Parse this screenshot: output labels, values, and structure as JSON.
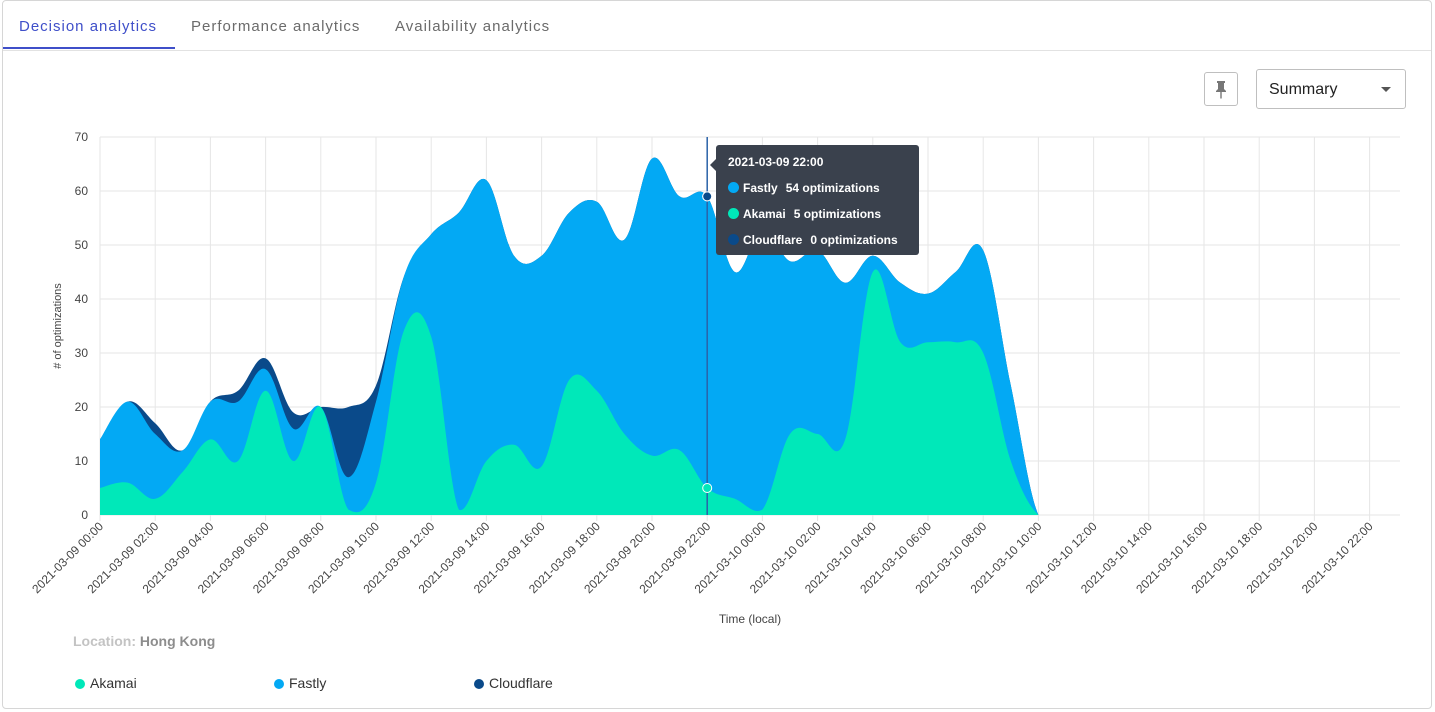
{
  "tabs": [
    {
      "label": "Decision analytics",
      "active": true
    },
    {
      "label": "Performance analytics",
      "active": false
    },
    {
      "label": "Availability analytics",
      "active": false
    }
  ],
  "toolbar": {
    "pin_icon": "pin-icon",
    "view_select": {
      "value": "Summary",
      "icon": "caret-down-icon"
    }
  },
  "location": {
    "label": "Location:",
    "value": "Hong Kong"
  },
  "tooltip": {
    "title": "2021-03-09 22:00",
    "rows": [
      {
        "provider": "Fastly",
        "value": "54 optimizations",
        "color": "#03a9f4"
      },
      {
        "provider": "Akamai",
        "value": "5 optimizations",
        "color": "#00e8b9"
      },
      {
        "provider": "Cloudflare",
        "value": "0 optimizations",
        "color": "#0a4a8a"
      }
    ]
  },
  "legend": [
    {
      "name": "Akamai",
      "color": "#00e8b9"
    },
    {
      "name": "Fastly",
      "color": "#03a9f4"
    },
    {
      "name": "Cloudflare",
      "color": "#0a4a8a"
    }
  ],
  "chart_data": {
    "type": "area",
    "stacked": true,
    "xlabel": "Time (local)",
    "ylabel": "# of optimizations",
    "ylim": [
      0,
      70
    ],
    "yticks": [
      0,
      10,
      20,
      30,
      40,
      50,
      60,
      70
    ],
    "grid": true,
    "x": [
      "2021-03-09 00:00",
      "2021-03-09 01:00",
      "2021-03-09 02:00",
      "2021-03-09 03:00",
      "2021-03-09 04:00",
      "2021-03-09 05:00",
      "2021-03-09 06:00",
      "2021-03-09 07:00",
      "2021-03-09 08:00",
      "2021-03-09 09:00",
      "2021-03-09 10:00",
      "2021-03-09 11:00",
      "2021-03-09 12:00",
      "2021-03-09 13:00",
      "2021-03-09 14:00",
      "2021-03-09 15:00",
      "2021-03-09 16:00",
      "2021-03-09 17:00",
      "2021-03-09 18:00",
      "2021-03-09 19:00",
      "2021-03-09 20:00",
      "2021-03-09 21:00",
      "2021-03-09 22:00",
      "2021-03-09 23:00",
      "2021-03-10 00:00",
      "2021-03-10 01:00",
      "2021-03-10 02:00",
      "2021-03-10 03:00",
      "2021-03-10 04:00",
      "2021-03-10 05:00",
      "2021-03-10 06:00",
      "2021-03-10 07:00",
      "2021-03-10 08:00",
      "2021-03-10 09:00",
      "2021-03-10 10:00",
      "2021-03-10 11:00",
      "2021-03-10 12:00",
      "2021-03-10 13:00",
      "2021-03-10 14:00",
      "2021-03-10 15:00",
      "2021-03-10 16:00",
      "2021-03-10 17:00",
      "2021-03-10 18:00",
      "2021-03-10 19:00",
      "2021-03-10 20:00",
      "2021-03-10 21:00",
      "2021-03-10 22:00",
      "2021-03-10 23:00"
    ],
    "xticks": [
      "2021-03-09 00:00",
      "2021-03-09 02:00",
      "2021-03-09 04:00",
      "2021-03-09 06:00",
      "2021-03-09 08:00",
      "2021-03-09 10:00",
      "2021-03-09 12:00",
      "2021-03-09 14:00",
      "2021-03-09 16:00",
      "2021-03-09 18:00",
      "2021-03-09 20:00",
      "2021-03-09 22:00",
      "2021-03-10 00:00",
      "2021-03-10 02:00",
      "2021-03-10 04:00",
      "2021-03-10 06:00",
      "2021-03-10 08:00",
      "2021-03-10 10:00",
      "2021-03-10 12:00",
      "2021-03-10 14:00",
      "2021-03-10 16:00",
      "2021-03-10 18:00",
      "2021-03-10 20:00",
      "2021-03-10 22:00"
    ],
    "series": [
      {
        "name": "Akamai",
        "color": "#00e8b9",
        "values": [
          5,
          6,
          3,
          8,
          14,
          10,
          23,
          10,
          20,
          1,
          6,
          34,
          33,
          1,
          10,
          13,
          9,
          25,
          23,
          15,
          11,
          12,
          5,
          3,
          1,
          15,
          15,
          14,
          45,
          32,
          32,
          32,
          30,
          10,
          0,
          0,
          0,
          0,
          0,
          0,
          0,
          0,
          0,
          0,
          0,
          0,
          0,
          0
        ]
      },
      {
        "name": "Fastly",
        "color": "#03a9f4",
        "values": [
          9,
          15,
          12,
          4,
          7,
          11,
          4,
          6,
          0,
          6,
          15,
          10,
          19,
          55,
          52,
          35,
          39,
          31,
          35,
          36,
          55,
          47,
          54,
          42,
          52,
          32,
          34,
          29,
          3,
          11,
          9,
          13,
          19,
          14,
          0,
          0,
          0,
          0,
          0,
          0,
          0,
          0,
          0,
          0,
          0,
          0,
          0,
          0
        ]
      },
      {
        "name": "Cloudflare",
        "color": "#0a4a8a",
        "values": [
          0,
          0,
          2,
          0,
          0,
          2,
          2,
          3,
          0,
          13,
          3,
          0,
          0,
          0,
          0,
          0,
          0,
          0,
          0,
          0,
          0,
          0,
          0,
          0,
          0,
          0,
          0,
          0,
          0,
          0,
          0,
          0,
          0,
          0,
          0,
          0,
          0,
          0,
          0,
          0,
          0,
          0,
          0,
          0,
          0,
          0,
          0,
          0
        ]
      }
    ],
    "highlight_x": "2021-03-09 22:00",
    "legend_position": "bottom"
  }
}
